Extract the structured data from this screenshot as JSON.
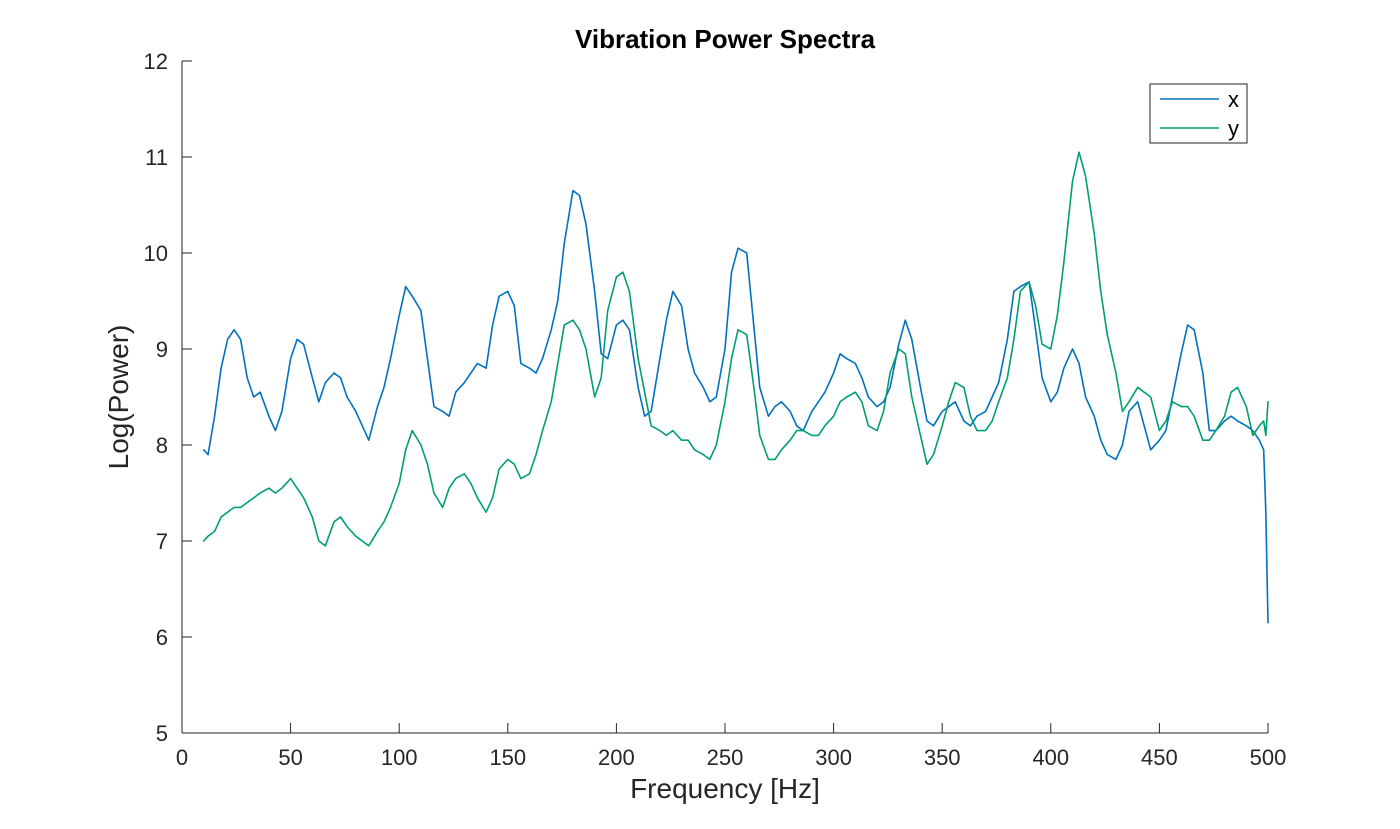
{
  "chart_data": {
    "type": "line",
    "title": "Vibration Power Spectra",
    "xlabel": "Frequency [Hz]",
    "ylabel": "Log(Power)",
    "xlim": [
      0,
      500
    ],
    "ylim": [
      5,
      12
    ],
    "xticks": [
      0,
      50,
      100,
      150,
      200,
      250,
      300,
      350,
      400,
      450,
      500
    ],
    "yticks": [
      5,
      6,
      7,
      8,
      9,
      10,
      11,
      12
    ],
    "grid": false,
    "legend_position": "top-right",
    "series": [
      {
        "name": "x",
        "color": "#0072BD",
        "x": [
          10,
          12,
          15,
          18,
          21,
          24,
          27,
          30,
          33,
          36,
          40,
          43,
          46,
          50,
          53,
          56,
          60,
          63,
          66,
          70,
          73,
          76,
          80,
          83,
          86,
          90,
          93,
          96,
          100,
          103,
          106,
          110,
          113,
          116,
          120,
          123,
          126,
          130,
          133,
          136,
          140,
          143,
          146,
          150,
          153,
          156,
          160,
          163,
          166,
          170,
          173,
          176,
          180,
          183,
          186,
          190,
          193,
          196,
          200,
          203,
          206,
          210,
          213,
          216,
          220,
          223,
          226,
          230,
          233,
          236,
          240,
          243,
          246,
          250,
          253,
          256,
          260,
          263,
          266,
          270,
          273,
          276,
          280,
          283,
          286,
          290,
          293,
          296,
          300,
          303,
          306,
          310,
          313,
          316,
          320,
          323,
          326,
          330,
          333,
          336,
          340,
          343,
          346,
          350,
          353,
          356,
          360,
          363,
          366,
          370,
          373,
          376,
          380,
          383,
          386,
          390,
          393,
          396,
          400,
          403,
          406,
          410,
          413,
          416,
          420,
          423,
          426,
          430,
          433,
          436,
          440,
          443,
          446,
          450,
          453,
          456,
          460,
          463,
          466,
          470,
          473,
          476,
          480,
          483,
          486,
          490,
          493,
          496,
          498,
          499,
          500
        ],
        "values": [
          7.95,
          7.9,
          8.3,
          8.8,
          9.1,
          9.2,
          9.1,
          8.7,
          8.5,
          8.55,
          8.3,
          8.15,
          8.35,
          8.9,
          9.1,
          9.05,
          8.7,
          8.45,
          8.65,
          8.75,
          8.7,
          8.5,
          8.35,
          8.2,
          8.05,
          8.4,
          8.6,
          8.9,
          9.35,
          9.65,
          9.55,
          9.4,
          8.9,
          8.4,
          8.35,
          8.3,
          8.55,
          8.65,
          8.75,
          8.85,
          8.8,
          9.25,
          9.55,
          9.6,
          9.45,
          8.85,
          8.8,
          8.75,
          8.9,
          9.2,
          9.5,
          10.1,
          10.65,
          10.6,
          10.3,
          9.6,
          8.95,
          8.9,
          9.25,
          9.3,
          9.2,
          8.6,
          8.3,
          8.35,
          8.9,
          9.3,
          9.6,
          9.45,
          9.0,
          8.75,
          8.6,
          8.45,
          8.5,
          9.0,
          9.8,
          10.05,
          10.0,
          9.3,
          8.6,
          8.3,
          8.4,
          8.45,
          8.35,
          8.2,
          8.15,
          8.35,
          8.45,
          8.55,
          8.75,
          8.95,
          8.9,
          8.85,
          8.7,
          8.5,
          8.4,
          8.45,
          8.6,
          9.05,
          9.3,
          9.1,
          8.6,
          8.25,
          8.2,
          8.35,
          8.4,
          8.45,
          8.25,
          8.2,
          8.3,
          8.35,
          8.5,
          8.65,
          9.1,
          9.6,
          9.65,
          9.7,
          9.2,
          8.7,
          8.45,
          8.55,
          8.8,
          9.0,
          8.85,
          8.5,
          8.3,
          8.05,
          7.9,
          7.85,
          8.0,
          8.35,
          8.45,
          8.2,
          7.95,
          8.05,
          8.15,
          8.5,
          8.95,
          9.25,
          9.2,
          8.75,
          8.15,
          8.15,
          8.25,
          8.3,
          8.25,
          8.2,
          8.15,
          8.05,
          7.95,
          7.3,
          6.15
        ]
      },
      {
        "name": "y",
        "color": "#009E73",
        "x": [
          10,
          12,
          15,
          18,
          21,
          24,
          27,
          30,
          33,
          36,
          40,
          43,
          46,
          50,
          53,
          56,
          60,
          63,
          66,
          70,
          73,
          76,
          80,
          83,
          86,
          90,
          93,
          96,
          100,
          103,
          106,
          110,
          113,
          116,
          120,
          123,
          126,
          130,
          133,
          136,
          140,
          143,
          146,
          150,
          153,
          156,
          160,
          163,
          166,
          170,
          173,
          176,
          180,
          183,
          186,
          190,
          193,
          196,
          200,
          203,
          206,
          210,
          213,
          216,
          220,
          223,
          226,
          230,
          233,
          236,
          240,
          243,
          246,
          250,
          253,
          256,
          260,
          263,
          266,
          270,
          273,
          276,
          280,
          283,
          286,
          290,
          293,
          296,
          300,
          303,
          306,
          310,
          313,
          316,
          320,
          323,
          326,
          330,
          333,
          336,
          340,
          343,
          346,
          350,
          353,
          356,
          360,
          363,
          366,
          370,
          373,
          376,
          380,
          383,
          386,
          390,
          393,
          396,
          400,
          403,
          406,
          410,
          413,
          416,
          420,
          423,
          426,
          430,
          433,
          436,
          440,
          443,
          446,
          450,
          453,
          456,
          460,
          463,
          466,
          470,
          473,
          476,
          480,
          483,
          486,
          490,
          493,
          496,
          498,
          499,
          500
        ],
        "values": [
          7.0,
          7.05,
          7.1,
          7.25,
          7.3,
          7.35,
          7.35,
          7.4,
          7.45,
          7.5,
          7.55,
          7.5,
          7.55,
          7.65,
          7.55,
          7.45,
          7.25,
          7.0,
          6.95,
          7.2,
          7.25,
          7.15,
          7.05,
          7.0,
          6.95,
          7.1,
          7.2,
          7.35,
          7.6,
          7.95,
          8.15,
          8.0,
          7.8,
          7.5,
          7.35,
          7.55,
          7.65,
          7.7,
          7.6,
          7.45,
          7.3,
          7.45,
          7.75,
          7.85,
          7.8,
          7.65,
          7.7,
          7.9,
          8.15,
          8.45,
          8.85,
          9.25,
          9.3,
          9.2,
          9.0,
          8.5,
          8.7,
          9.4,
          9.75,
          9.8,
          9.6,
          8.9,
          8.55,
          8.2,
          8.15,
          8.1,
          8.15,
          8.05,
          8.05,
          7.95,
          7.9,
          7.85,
          8.0,
          8.45,
          8.9,
          9.2,
          9.15,
          8.65,
          8.1,
          7.85,
          7.85,
          7.95,
          8.05,
          8.15,
          8.15,
          8.1,
          8.1,
          8.2,
          8.3,
          8.45,
          8.5,
          8.55,
          8.45,
          8.2,
          8.15,
          8.35,
          8.75,
          9.0,
          8.95,
          8.5,
          8.1,
          7.8,
          7.9,
          8.2,
          8.45,
          8.65,
          8.6,
          8.3,
          8.15,
          8.15,
          8.25,
          8.45,
          8.7,
          9.1,
          9.6,
          9.7,
          9.45,
          9.05,
          9.0,
          9.35,
          9.9,
          10.75,
          11.05,
          10.8,
          10.2,
          9.6,
          9.15,
          8.75,
          8.35,
          8.45,
          8.6,
          8.55,
          8.5,
          8.15,
          8.25,
          8.45,
          8.4,
          8.4,
          8.3,
          8.05,
          8.05,
          8.15,
          8.3,
          8.55,
          8.6,
          8.4,
          8.1,
          8.2,
          8.25,
          8.1,
          8.45
        ]
      }
    ]
  }
}
